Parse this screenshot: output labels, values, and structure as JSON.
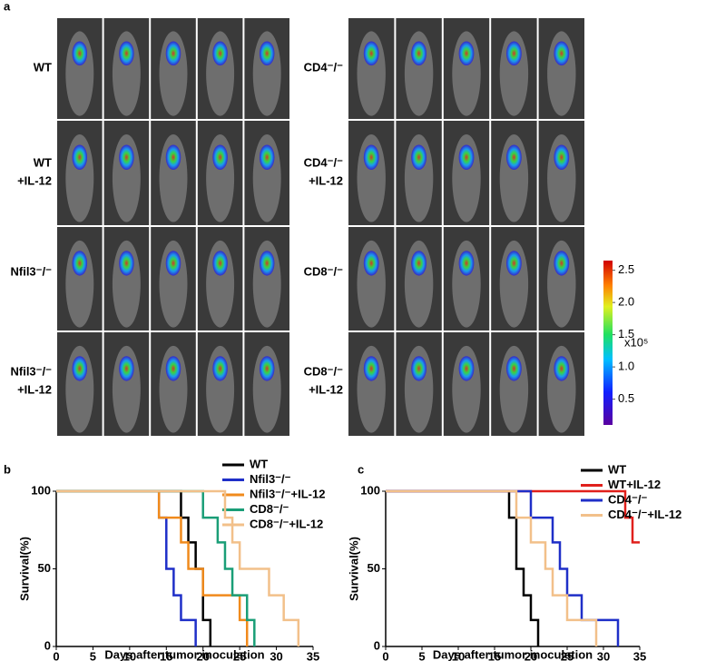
{
  "panel_labels": [
    "a",
    "b",
    "c"
  ],
  "panel_a": {
    "groups_left": [
      [
        "WT"
      ],
      [
        "WT",
        "+IL-12"
      ],
      [
        "Nfil3⁻/⁻"
      ],
      [
        "Nfil3⁻/⁻",
        "+IL-12"
      ]
    ],
    "groups_right": [
      [
        "CD4⁻/⁻"
      ],
      [
        "CD4⁻/⁻",
        "+IL-12"
      ],
      [
        "CD8⁻/⁻"
      ],
      [
        "CD8⁻/⁻",
        "+IL-12"
      ]
    ],
    "colorbar": {
      "clim": [
        0.1,
        2.65
      ],
      "ticks": [
        {
          "value": 0.5,
          "label": "0.5"
        },
        {
          "value": 1,
          "label": "1.0"
        },
        {
          "value": 1.5,
          "label": "1.5"
        },
        {
          "value": 2,
          "label": "2.0"
        },
        {
          "value": 2.5,
          "label": "2.5"
        }
      ],
      "unit": "x10⁵"
    }
  },
  "chart_data": [
    {
      "type": "step",
      "xlabel": "Days after tumor inoculation",
      "ylabel": "Survival(%)",
      "xlim": [
        0,
        35
      ],
      "ylim": [
        0,
        100
      ],
      "xticks": [
        0,
        5,
        10,
        15,
        20,
        25,
        30,
        35
      ],
      "yticks": [
        0,
        50,
        100
      ],
      "series": [
        {
          "name": "WT",
          "color": "#000000",
          "x": [
            0,
            17,
            18,
            19,
            20,
            21
          ],
          "values": [
            100,
            83,
            67,
            50,
            17,
            0
          ]
        },
        {
          "name": "Nfil3⁻/⁻",
          "color": "#1f2fc8",
          "x": [
            0,
            14,
            15,
            16,
            17,
            19
          ],
          "values": [
            100,
            83,
            50,
            33,
            17,
            0
          ]
        },
        {
          "name": "Nfil3⁻/⁻+IL-12",
          "color": "#f08a1c",
          "x": [
            0,
            14,
            17,
            18,
            20,
            25,
            26
          ],
          "values": [
            100,
            83,
            67,
            50,
            33,
            17,
            0
          ]
        },
        {
          "name": "CD8⁻/⁻",
          "color": "#1a9e77",
          "x": [
            0,
            20,
            22,
            23,
            24,
            26,
            27
          ],
          "values": [
            100,
            83,
            67,
            50,
            33,
            17,
            0
          ]
        },
        {
          "name": "CD8⁻/⁻+IL-12",
          "color": "#f2c08a",
          "x": [
            0,
            23,
            24,
            25,
            29,
            31,
            33
          ],
          "values": [
            100,
            83,
            67,
            50,
            33,
            17,
            0
          ]
        }
      ]
    },
    {
      "type": "step",
      "xlabel": "Days after tumor inoculation",
      "ylabel": "Survival(%)",
      "xlim": [
        0,
        35
      ],
      "ylim": [
        0,
        100
      ],
      "xticks": [
        0,
        5,
        10,
        15,
        20,
        25,
        30,
        35
      ],
      "yticks": [
        0,
        50,
        100
      ],
      "series": [
        {
          "name": "WT",
          "color": "#000000",
          "x": [
            0,
            17,
            18,
            19,
            20,
            21
          ],
          "values": [
            100,
            83,
            50,
            33,
            17,
            0
          ]
        },
        {
          "name": "WT+IL-12",
          "color": "#e0201c",
          "x": [
            0,
            33,
            34,
            35
          ],
          "values": [
            100,
            83,
            67,
            67
          ]
        },
        {
          "name": "CD4⁻/⁻",
          "color": "#1f2fc8",
          "x": [
            0,
            20,
            23,
            24,
            25,
            27,
            32
          ],
          "values": [
            100,
            83,
            67,
            50,
            33,
            17,
            0
          ]
        },
        {
          "name": "CD4⁻/⁻+IL-12",
          "color": "#f2c08a",
          "x": [
            0,
            18,
            20,
            22,
            23,
            25,
            29
          ],
          "values": [
            100,
            83,
            67,
            50,
            33,
            17,
            0
          ]
        }
      ]
    }
  ]
}
